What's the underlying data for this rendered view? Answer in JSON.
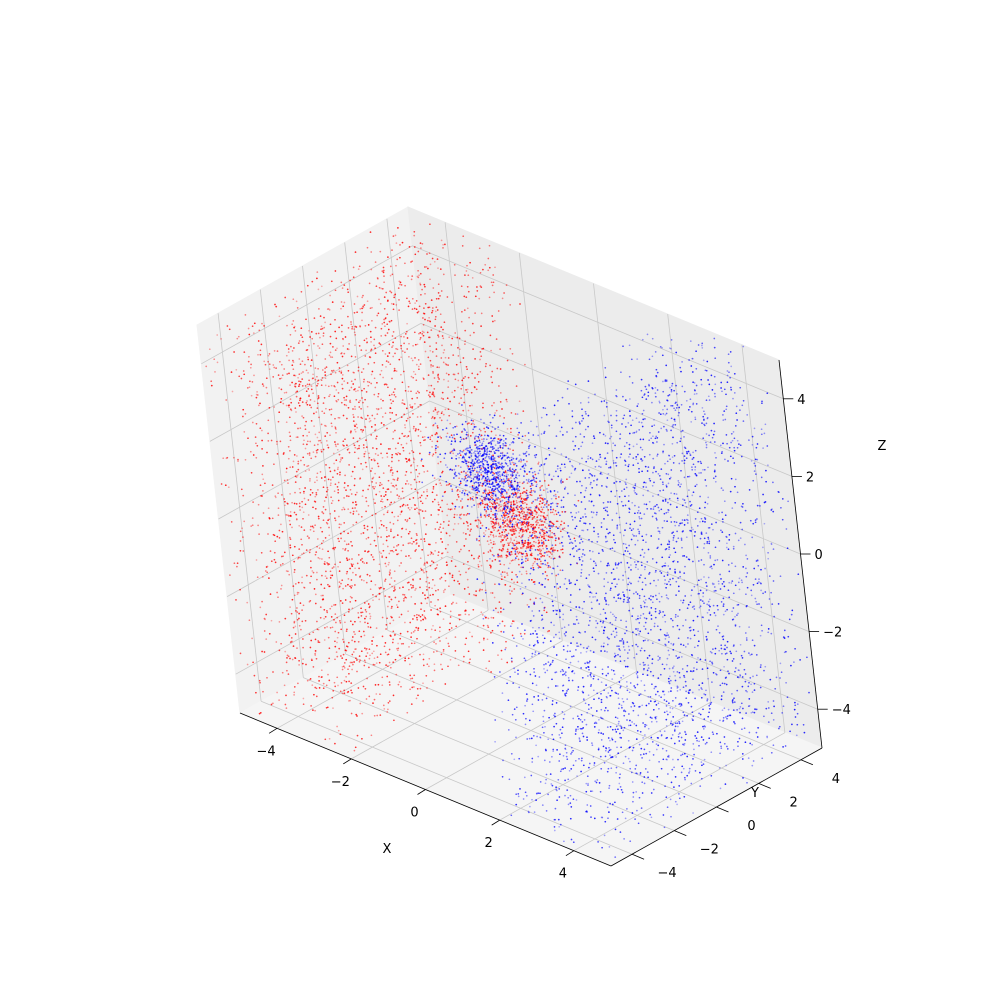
{
  "chart_data": {
    "type": "scatter",
    "subtype": "3d-scatter",
    "title": "",
    "xlabel": "X",
    "ylabel": "Y",
    "zlabel": "Z",
    "xlim": [
      -5,
      5
    ],
    "ylim": [
      -5,
      5
    ],
    "zlim": [
      -5,
      5
    ],
    "xticks": [
      -4,
      -2,
      0,
      2,
      4
    ],
    "yticks": [
      -4,
      -2,
      0,
      2,
      4
    ],
    "zticks": [
      -4,
      -2,
      0,
      2,
      4
    ],
    "grid": true,
    "legend": "none",
    "series": [
      {
        "color": "#ff0000",
        "clusters": [
          {
            "shape": "uniform-box",
            "x": [
              -5,
              -2
            ],
            "y": [
              -5,
              5
            ],
            "z": [
              -5,
              5
            ],
            "points": 3000
          },
          {
            "shape": "gaussian-blob",
            "center": [
              1,
              -1,
              1
            ],
            "spread": 0.5,
            "points": 800
          }
        ]
      },
      {
        "color": "#0000ff",
        "clusters": [
          {
            "shape": "uniform-box",
            "x": [
              2,
              5
            ],
            "y": [
              -5,
              5
            ],
            "z": [
              -5,
              5
            ],
            "points": 3000
          },
          {
            "shape": "gaussian-blob",
            "center": [
              -1,
              1,
              1
            ],
            "spread": 0.5,
            "points": 800
          }
        ]
      }
    ]
  },
  "tick_text": {
    "x": [
      "−4",
      "−2",
      "0",
      "2",
      "4"
    ],
    "y": [
      "−4",
      "−2",
      "0",
      "2",
      "4"
    ],
    "z": [
      "−4",
      "−2",
      "0",
      "2",
      "4"
    ]
  }
}
